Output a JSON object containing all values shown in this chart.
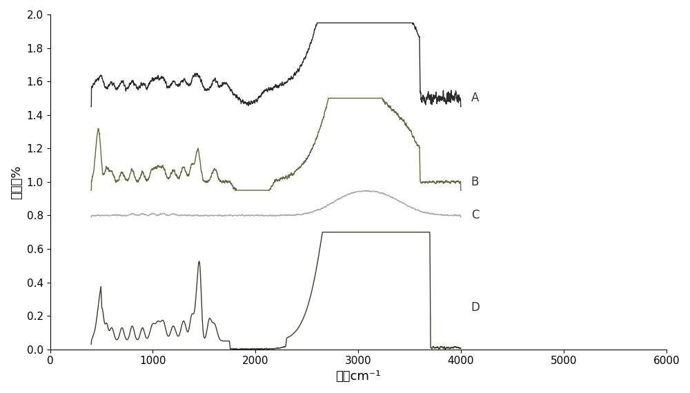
{
  "title": "",
  "xlabel": "波数cm⁻¹",
  "ylabel": "透光率%",
  "xlim": [
    0,
    6000
  ],
  "ylim": [
    0,
    2.0
  ],
  "xticks": [
    0,
    1000,
    2000,
    3000,
    4000,
    5000,
    6000
  ],
  "yticks": [
    0,
    0.2,
    0.4,
    0.6,
    0.8,
    1.0,
    1.2,
    1.4,
    1.6,
    1.8,
    2.0
  ],
  "color_A": "#2a2a2a",
  "color_B": "#5a6a3a",
  "color_C": "#b0a0c0",
  "color_D": "#3a3a2a",
  "label_A": "A",
  "label_B": "B",
  "label_C": "C",
  "label_D": "D",
  "bg_color": "#ffffff",
  "linewidth": 1.0,
  "xlabel_fontsize": 13,
  "ylabel_fontsize": 13,
  "tick_fontsize": 11
}
